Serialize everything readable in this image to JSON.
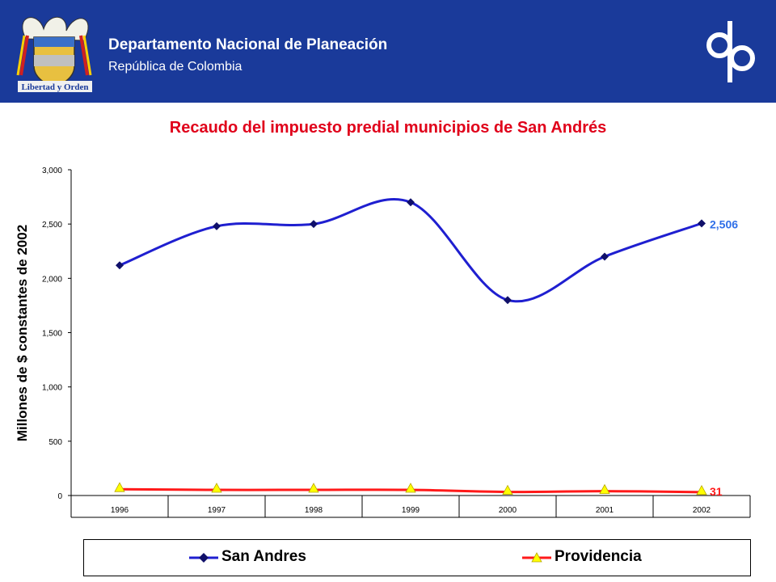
{
  "header": {
    "org_name": "Departamento Nacional de Planeación",
    "org_sub": "República de Colombia",
    "crest_motto": "Libertad y Orden",
    "logo_text": "dnp",
    "background_color": "#1a3a9a"
  },
  "chart_data": {
    "type": "line",
    "title": "Recaudo del impuesto predial municipios de San Andrés",
    "xlabel": "",
    "ylabel": "Millones de $ constantes de 2002",
    "categories": [
      "1996",
      "1997",
      "1998",
      "1999",
      "2000",
      "2001",
      "2002"
    ],
    "ylim": [
      0,
      3000
    ],
    "yticks": [
      0,
      500,
      1000,
      1500,
      2000,
      2500,
      3000
    ],
    "ytick_labels": [
      "0",
      "500",
      "1,000",
      "1,500",
      "2,000",
      "2,500",
      "3,000"
    ],
    "grid": false,
    "legend_position": "bottom",
    "series": [
      {
        "name": "San Andres",
        "values": [
          2120,
          2480,
          2500,
          2700,
          1800,
          2200,
          2506
        ],
        "color": "#1f1fd0",
        "marker": "diamond",
        "end_label": "2,506",
        "end_label_color": "#2f6fe8"
      },
      {
        "name": "Providencia",
        "values": [
          58,
          52,
          52,
          52,
          33,
          40,
          31
        ],
        "color": "#ff1a1a",
        "marker": "triangle",
        "marker_color": "#ffff00",
        "end_label": "31",
        "end_label_color": "#ff1a1a"
      }
    ]
  }
}
